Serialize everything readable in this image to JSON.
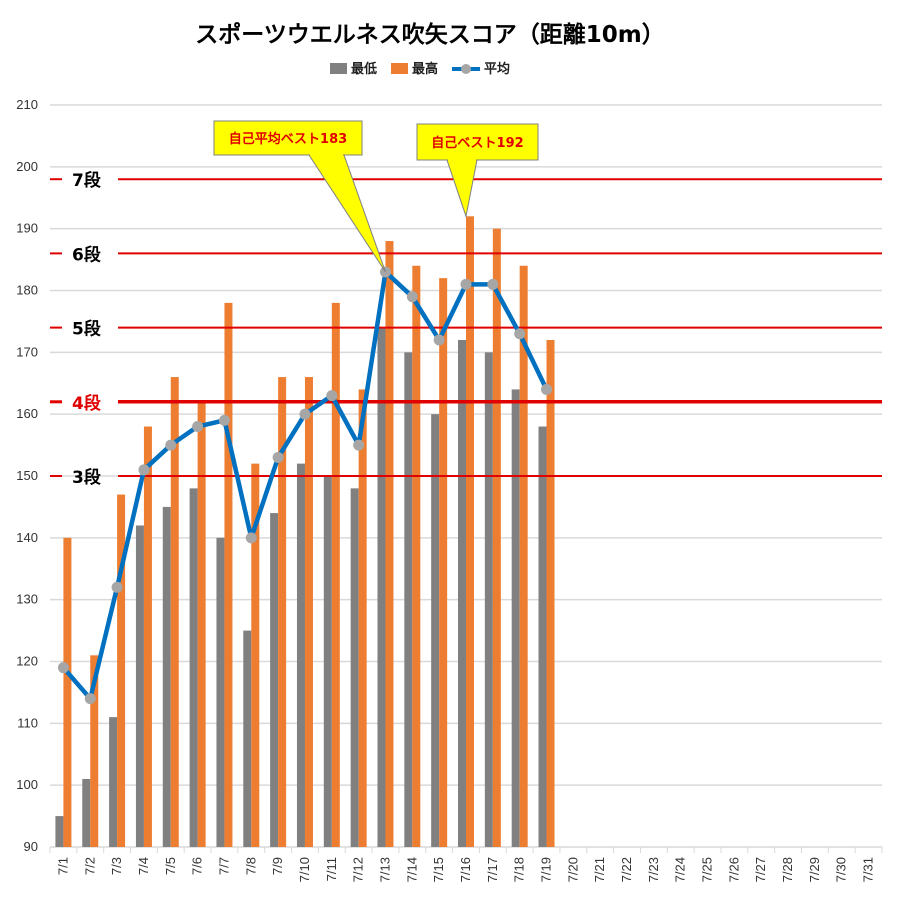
{
  "chart_data": {
    "type": "bar",
    "title": "スポーツウエルネス吹矢スコア（距離10m）",
    "categories": [
      "7/1",
      "7/2",
      "7/3",
      "7/4",
      "7/5",
      "7/6",
      "7/7",
      "7/8",
      "7/9",
      "7/10",
      "7/11",
      "7/12",
      "7/13",
      "7/14",
      "7/15",
      "7/16",
      "7/17",
      "7/18",
      "7/19",
      "7/20",
      "7/21",
      "7/22",
      "7/23",
      "7/24",
      "7/25",
      "7/26",
      "7/27",
      "7/28",
      "7/29",
      "7/30",
      "7/31"
    ],
    "series": [
      {
        "name": "最低",
        "kind": "bar",
        "color": "#808080",
        "values": [
          95,
          101,
          111,
          142,
          145,
          148,
          140,
          125,
          144,
          152,
          150,
          148,
          174,
          170,
          160,
          172,
          170,
          164,
          158,
          null,
          null,
          null,
          null,
          null,
          null,
          null,
          null,
          null,
          null,
          null,
          null
        ]
      },
      {
        "name": "最高",
        "kind": "bar",
        "color": "#ed7d31",
        "values": [
          140,
          121,
          147,
          158,
          166,
          162,
          178,
          152,
          166,
          166,
          178,
          164,
          188,
          184,
          182,
          192,
          190,
          184,
          172,
          null,
          null,
          null,
          null,
          null,
          null,
          null,
          null,
          null,
          null,
          null,
          null
        ]
      },
      {
        "name": "平均",
        "kind": "line",
        "color": "#0070c0",
        "marker_color": "#a6a6a6",
        "values": [
          119,
          114,
          132,
          151,
          155,
          158,
          159,
          140,
          153,
          160,
          163,
          155,
          183,
          179,
          172,
          181,
          181,
          173,
          164,
          null,
          null,
          null,
          null,
          null,
          null,
          null,
          null,
          null,
          null,
          null,
          null
        ]
      }
    ],
    "ylim": [
      90,
      210
    ],
    "yticks": [
      90,
      100,
      110,
      120,
      130,
      140,
      150,
      160,
      170,
      180,
      190,
      200,
      210
    ],
    "grid": true,
    "legend_position": "top-center",
    "reference_lines": [
      {
        "label": "7段",
        "value": 198,
        "color": "#e00000",
        "emphasis": false
      },
      {
        "label": "6段",
        "value": 186,
        "color": "#e00000",
        "emphasis": false
      },
      {
        "label": "5段",
        "value": 174,
        "color": "#e00000",
        "emphasis": false
      },
      {
        "label": "4段",
        "value": 162,
        "color": "#e00000",
        "emphasis": true
      },
      {
        "label": "3段",
        "value": 150,
        "color": "#e00000",
        "emphasis": false
      }
    ],
    "annotations": [
      {
        "text": "自己平均ベスト183",
        "category": "7/13",
        "value": 183,
        "fill": "#ffff00",
        "text_color": "#e00000"
      },
      {
        "text": "自己ベスト192",
        "category": "7/16",
        "value": 192,
        "fill": "#ffff00",
        "text_color": "#e00000"
      }
    ]
  }
}
